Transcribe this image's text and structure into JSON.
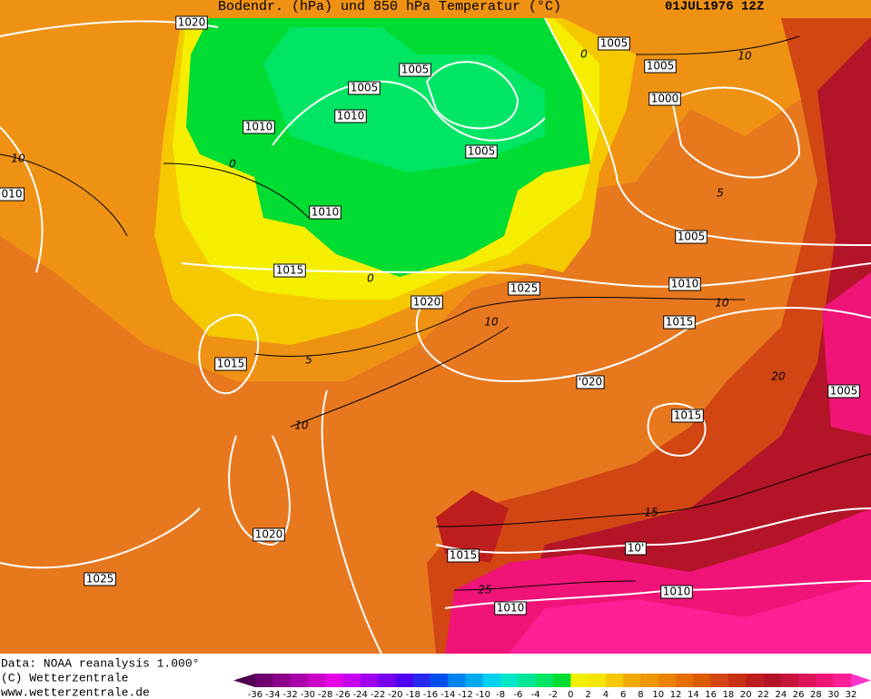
{
  "header": {
    "title": "Bodendr. (hPa) und 850 hPa Temperatur (°C)",
    "date": "01JUL1976 12Z"
  },
  "footer": {
    "source": "Data: NOAA reanalysis 1.000°",
    "copyright": "(C) Wetterzentrale",
    "url": "www.wetterzentrale.de"
  },
  "legend": {
    "labels": [
      -36,
      -34,
      -32,
      -30,
      -28,
      -26,
      -24,
      -22,
      -20,
      -18,
      -16,
      -14,
      -12,
      -10,
      -8,
      -6,
      -4,
      -2,
      0,
      2,
      4,
      6,
      8,
      10,
      12,
      14,
      16,
      18,
      20,
      22,
      24,
      26,
      28,
      30,
      32
    ],
    "colors": [
      "#500050",
      "#6e006e",
      "#8c008c",
      "#aa00aa",
      "#c800c8",
      "#e600e6",
      "#c800f0",
      "#a000f0",
      "#7800f0",
      "#5000f0",
      "#2828f0",
      "#0050f0",
      "#0082f0",
      "#00aaf0",
      "#00d2f0",
      "#00e6c8",
      "#00e696",
      "#00e664",
      "#00dc32",
      "#f0f000",
      "#f5e600",
      "#f5c800",
      "#f0aa00",
      "#f09600",
      "#eb8200",
      "#e66e00",
      "#dc5a00",
      "#d24614",
      "#c83214",
      "#be1e1e",
      "#b41428",
      "#c8143c",
      "#dc145a",
      "#f01478",
      "#ff1e96",
      "#ff32c8"
    ]
  },
  "isobar_labels": [
    1020,
    1005,
    1005,
    1005,
    1005,
    1010,
    1010,
    1000,
    1005,
    "010",
    1010,
    1005,
    1015,
    1025,
    1010,
    1020,
    1015,
    1015,
    "'020",
    1005,
    1015,
    1020,
    1015,
    "10'",
    1025,
    1010,
    1010
  ],
  "isotherm_labels": [
    10,
    0,
    10,
    0,
    5,
    0,
    10,
    10,
    5,
    10,
    20,
    15,
    25
  ]
}
